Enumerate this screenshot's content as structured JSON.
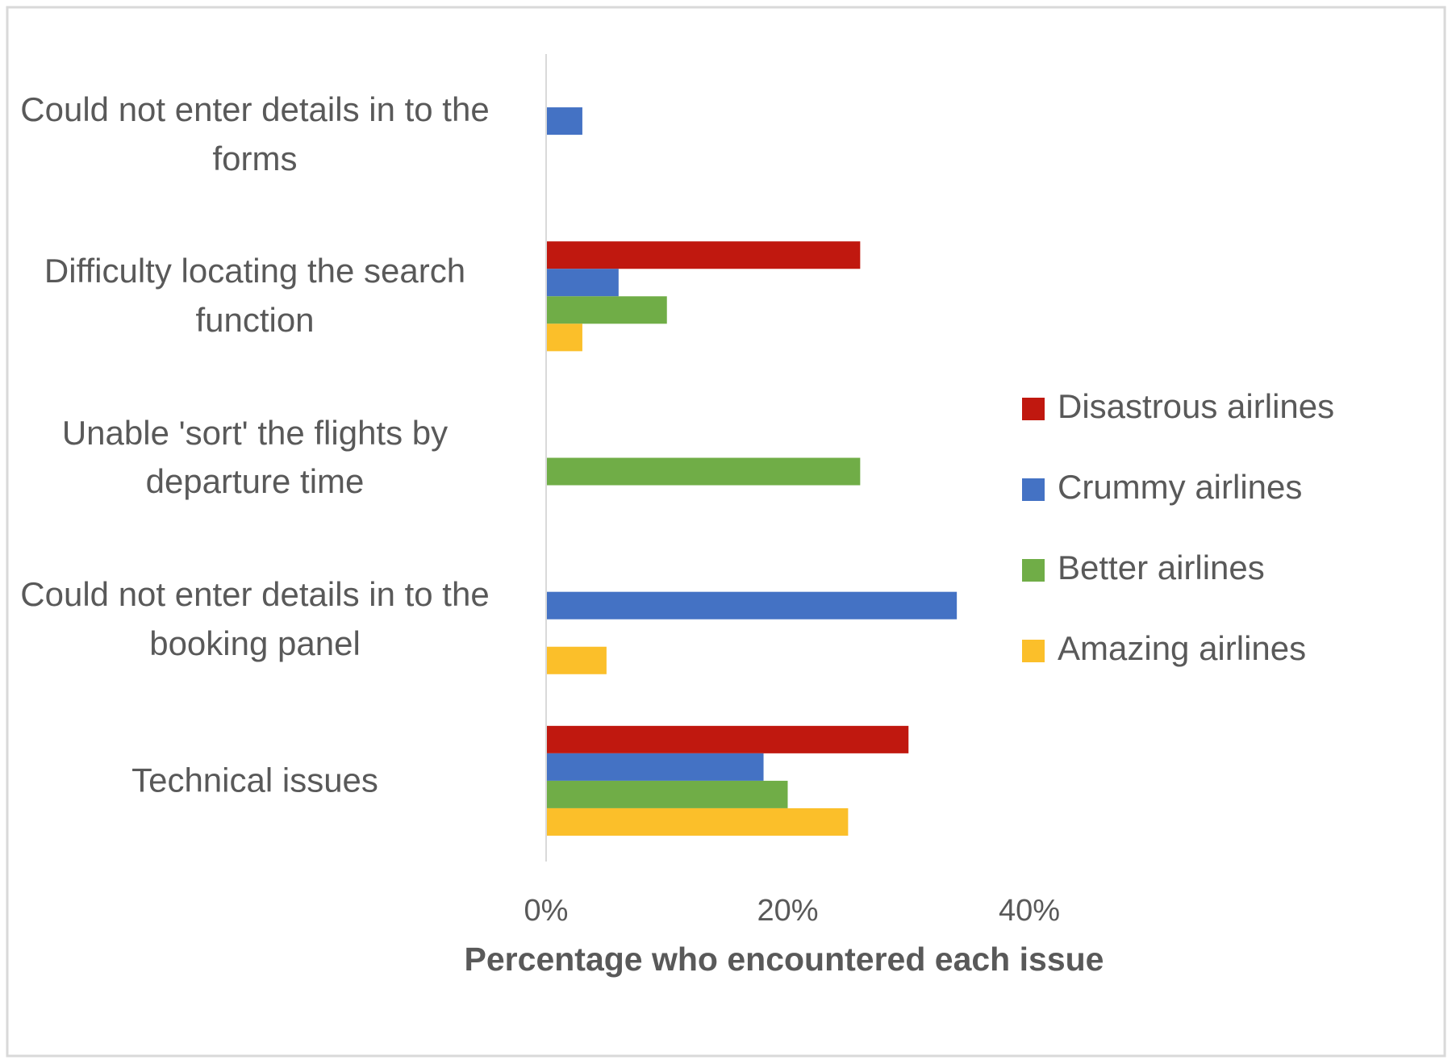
{
  "chart_data": {
    "type": "bar",
    "orientation": "horizontal",
    "x_label": "Percentage who encountered each issue",
    "categories": [
      "Could not enter details in to the forms",
      "Difficulty locating the search function",
      "Unable 'sort' the flights by departure time",
      "Could not enter details in to the booking panel",
      "Technical issues"
    ],
    "series": [
      {
        "name": "Disastrous airlines",
        "color": "#c0180f",
        "values": [
          0,
          26,
          0,
          0,
          30
        ]
      },
      {
        "name": "Crummy airlines",
        "color": "#4472c4",
        "values": [
          3,
          6,
          0,
          34,
          18
        ]
      },
      {
        "name": "Better airlines",
        "color": "#70ad47",
        "values": [
          0,
          10,
          26,
          0,
          20
        ]
      },
      {
        "name": "Amazing airlines",
        "color": "#fbbf2a",
        "values": [
          0,
          3,
          0,
          5,
          25
        ]
      }
    ],
    "xlim": [
      0,
      40
    ],
    "xticks": [
      {
        "value": 0,
        "label": "0%"
      },
      {
        "value": 20,
        "label": "20%"
      },
      {
        "value": 40,
        "label": "40%"
      }
    ],
    "grid": false,
    "legend": "right"
  }
}
